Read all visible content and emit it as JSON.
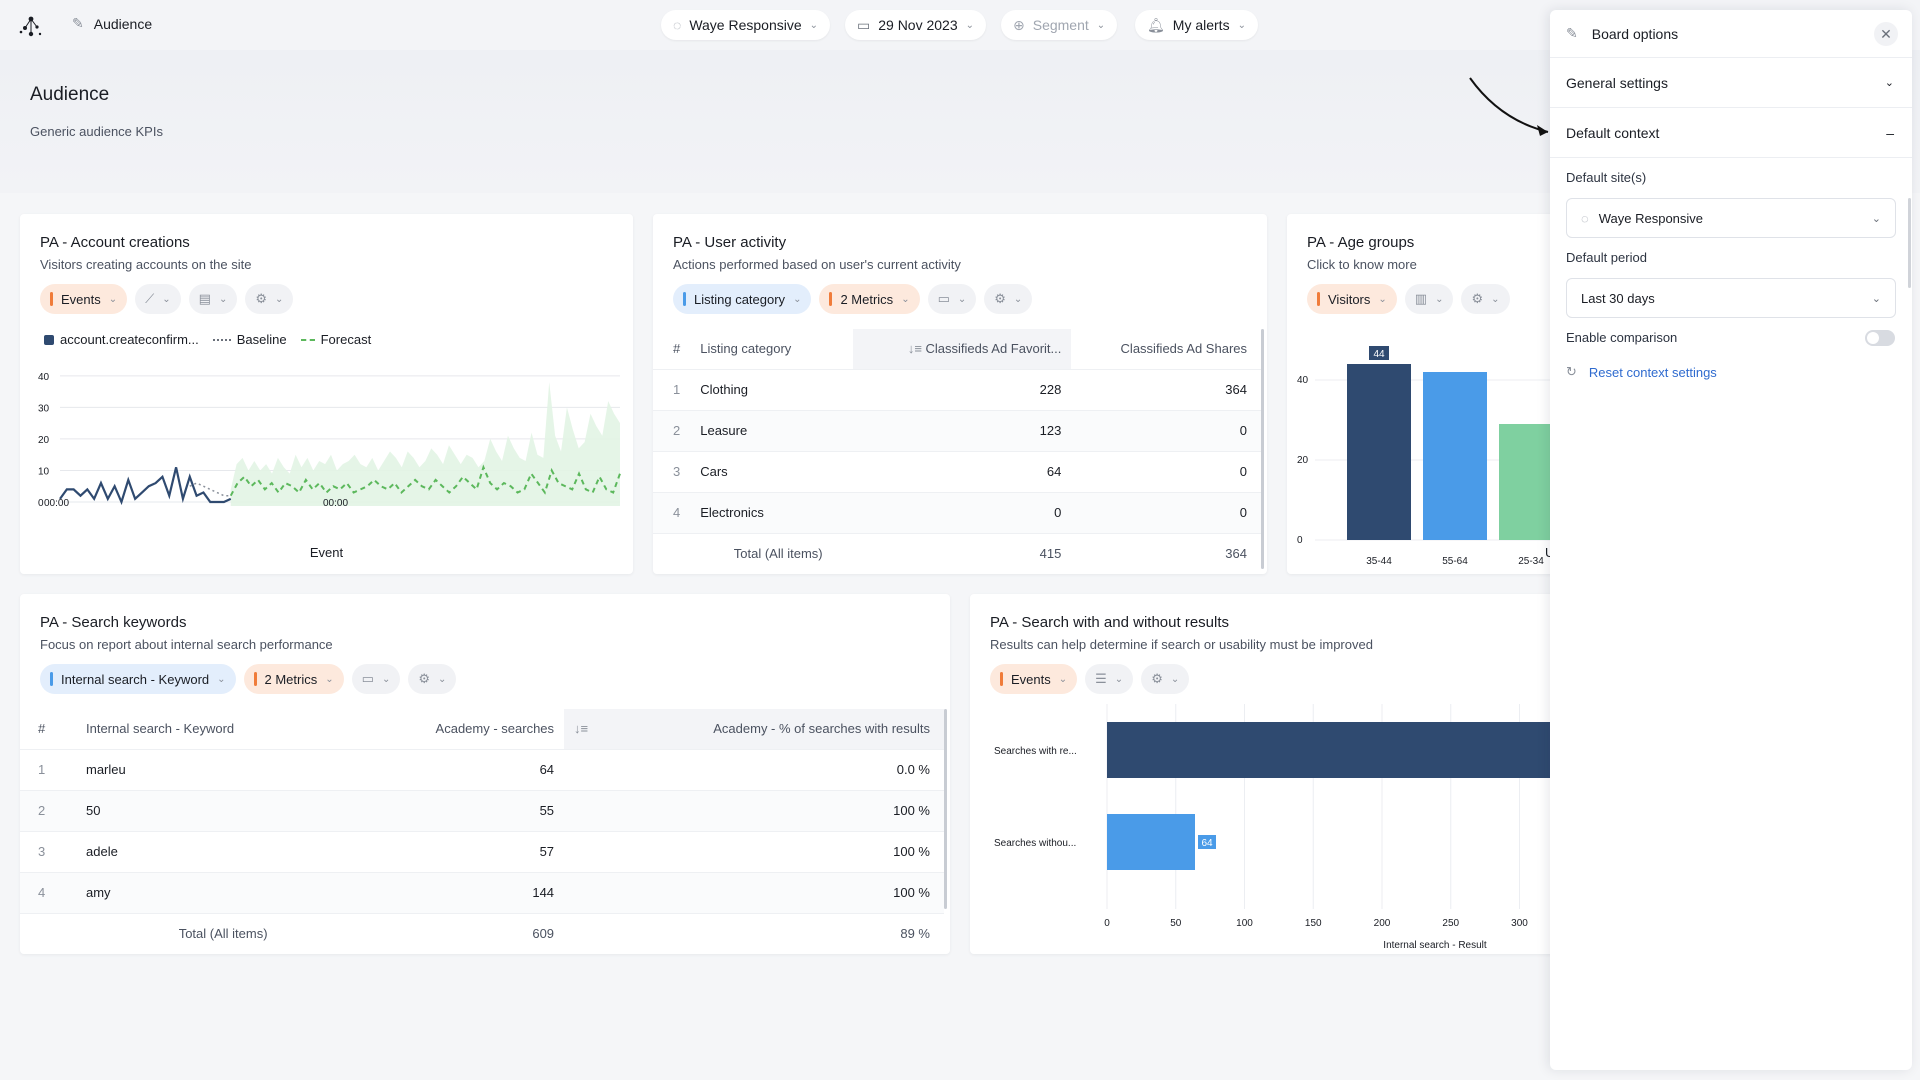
{
  "topbar": {
    "breadcrumb": "Audience",
    "site_filter": "Waye Responsive",
    "date_filter": "29 Nov 2023",
    "segment_filter": "Segment",
    "alerts": "My alerts"
  },
  "page": {
    "title": "Audience",
    "subtitle": "Generic audience KPIs"
  },
  "cards": {
    "account": {
      "title": "PA - Account creations",
      "subtitle": "Visitors creating accounts on the site",
      "ctl_events": "Events",
      "legend_series": "account.createconfirm...",
      "legend_baseline": "Baseline",
      "legend_forecast": "Forecast",
      "xlabel": "Event",
      "xticks": [
        "00:00",
        "00:00"
      ]
    },
    "activity": {
      "title": "PA - User activity",
      "subtitle": "Actions performed based on user's current activity",
      "ctl_category": "Listing category",
      "ctl_metrics": "2 Metrics",
      "headers": [
        "#",
        "Listing category",
        "Classifieds Ad Favorit...",
        "Classifieds Ad Shares"
      ],
      "rows": [
        {
          "idx": "1",
          "name": "Clothing",
          "a": "228",
          "b": "364"
        },
        {
          "idx": "2",
          "name": "Leasure",
          "a": "123",
          "b": "0"
        },
        {
          "idx": "3",
          "name": "Cars",
          "a": "64",
          "b": "0"
        },
        {
          "idx": "4",
          "name": "Electronics",
          "a": "0",
          "b": "0"
        }
      ],
      "total_label": "Total (All items)",
      "total_a": "415",
      "total_b": "364"
    },
    "age": {
      "title": "PA - Age groups",
      "subtitle": "Click to know more",
      "ctl_visitors": "Visitors",
      "xlabel": "U"
    },
    "keywords": {
      "title": "PA - Search keywords",
      "subtitle": "Focus on report about internal search performance",
      "ctl_keyword": "Internal search - Keyword",
      "ctl_metrics": "2 Metrics",
      "headers": [
        "#",
        "Internal search - Keyword",
        "Academy - searches",
        "Academy - % of searches with results"
      ],
      "rows": [
        {
          "idx": "1",
          "name": "marleu",
          "a": "64",
          "b": "0.0 %"
        },
        {
          "idx": "2",
          "name": "50",
          "a": "55",
          "b": "100 %"
        },
        {
          "idx": "3",
          "name": "adele",
          "a": "57",
          "b": "100 %"
        },
        {
          "idx": "4",
          "name": "amy",
          "a": "144",
          "b": "100 %"
        }
      ],
      "total_label": "Total (All items)",
      "total_a": "609",
      "total_b": "89 %"
    },
    "search": {
      "title": "PA - Search with and without results",
      "subtitle": "Results can help determine if search or usability must be improved",
      "ctl_events": "Events"
    }
  },
  "chart_data": [
    {
      "type": "line",
      "title": "PA - Account creations",
      "xlabel": "Event",
      "ylabel": "",
      "ylim": [
        0,
        40
      ],
      "yticks": [
        0,
        10,
        20,
        30,
        40
      ],
      "series": [
        {
          "name": "account.createconfirm...",
          "values": [
            1,
            4,
            4,
            2,
            4,
            1,
            6,
            1,
            5,
            0,
            7,
            1,
            3,
            5,
            6,
            8,
            2,
            11,
            1,
            8,
            2,
            3,
            0,
            0,
            0,
            1
          ]
        },
        {
          "name": "Baseline",
          "values": [
            null,
            null,
            null,
            null,
            null,
            null,
            null,
            null,
            null,
            null,
            null,
            null,
            null,
            null,
            null,
            null,
            null,
            null,
            null,
            5,
            6,
            5,
            4,
            3,
            2,
            2
          ]
        },
        {
          "name": "Forecast",
          "values": [
            null,
            null,
            null,
            null,
            null,
            null,
            null,
            null,
            null,
            null,
            null,
            null,
            null,
            null,
            null,
            null,
            null,
            null,
            null,
            null,
            null,
            null,
            null,
            null,
            null,
            2,
            6,
            8,
            5,
            7,
            4,
            6,
            3,
            6,
            5,
            3,
            7,
            4,
            6,
            3,
            5,
            4,
            6,
            3,
            4,
            5,
            7,
            5,
            4,
            6,
            3,
            5,
            7,
            5,
            4,
            7,
            5,
            3,
            5,
            8,
            6,
            4,
            11,
            6,
            4,
            6,
            5,
            3,
            4,
            9,
            6,
            3,
            10,
            6,
            5,
            4,
            9,
            4,
            3,
            8,
            4,
            3,
            9
          ]
        }
      ],
      "forecast_band_upper": [
        4,
        12,
        14,
        10,
        13,
        10,
        12,
        9,
        14,
        11,
        9,
        15,
        11,
        14,
        10,
        13,
        12,
        15,
        10,
        12,
        13,
        15,
        12,
        11,
        14,
        10,
        13,
        16,
        14,
        11,
        16,
        14,
        11,
        13,
        17,
        15,
        12,
        18,
        15,
        12,
        15,
        14,
        11,
        13,
        20,
        16,
        13,
        21,
        17,
        14,
        13,
        22,
        15,
        14,
        38,
        21,
        16,
        30,
        23,
        17,
        19,
        28,
        24,
        21,
        32,
        28,
        25
      ],
      "xticks": [
        "00:00",
        "00:00"
      ]
    },
    {
      "type": "bar",
      "title": "PA - Age groups",
      "categories": [
        "35-44",
        "55-64",
        "25-34"
      ],
      "values": [
        44,
        42,
        29
      ],
      "data_labels": [
        "44",
        "",
        ""
      ],
      "ylim": [
        0,
        44
      ],
      "yticks": [
        0,
        20,
        40
      ]
    },
    {
      "type": "bar",
      "orientation": "horizontal",
      "title": "PA - Search with and without results",
      "categories": [
        "Searches with re...",
        "Searches withou..."
      ],
      "values": [
        330,
        64
      ],
      "data_labels": [
        "",
        "64"
      ],
      "xlabel": "Internal search - Result",
      "xticks": [
        0,
        50,
        100,
        150,
        200,
        250,
        300
      ]
    }
  ],
  "sidebar": {
    "title": "Board options",
    "general_settings": "General settings",
    "default_context": "Default context",
    "default_sites_label": "Default site(s)",
    "default_site_value": "Waye Responsive",
    "default_period_label": "Default period",
    "default_period_value": "Last 30 days",
    "enable_comparison": "Enable comparison",
    "reset": "Reset context settings"
  },
  "colors": {
    "navy": "#2f4a70",
    "blue": "#4a9be8",
    "green": "#7fd0a0",
    "orange": "#f07c3a",
    "link": "#2f6bcf"
  }
}
